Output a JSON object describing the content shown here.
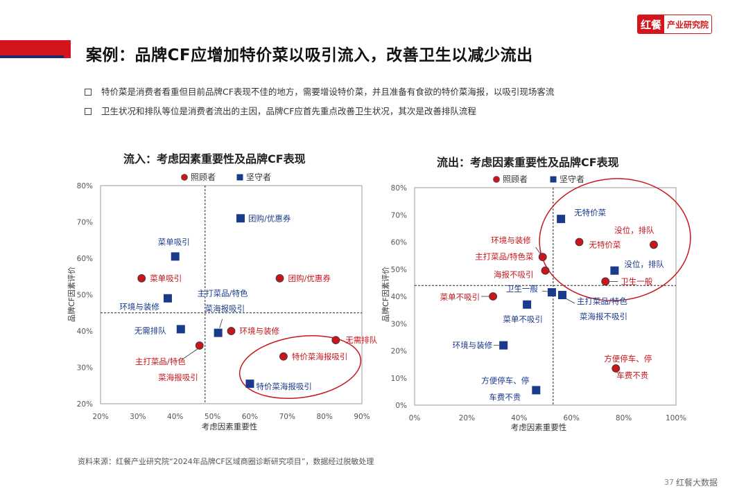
{
  "header": {
    "title": "案例：品牌CF应增加特价菜以吸引流入，改善卫生以减少流出",
    "logo_mark": "红餐",
    "logo_text": "产业研究院"
  },
  "bullets": [
    "特价菜是消费者看重但目前品牌CF表现不佳的地方，需要增设特价菜，并且准备有食欲的特价菜海报，以吸引现场客流",
    "卫生状况和排队等位是消费者流出的主因，品牌CF应首先重点改善卫生状况，其次是改善排队流程"
  ],
  "footer": {
    "source": "资料来源：红餐产业研究院“2024年品牌CF区域商圈诊断研究项目”，数据经过脱敏处理",
    "page": "37",
    "watermark": "红餐大数据"
  },
  "colors": {
    "red": "#c8161d",
    "navy": "#1a3a8c",
    "title_red": "#d3161d",
    "title_navy": "#1f2a6d"
  },
  "chart_data": [
    {
      "type": "scatter",
      "title": "流入：考虑因素重要性及品牌CF表现",
      "xlabel": "考虑因素重要性",
      "ylabel": "品牌CF因素评价",
      "xlim": [
        0.2,
        0.9
      ],
      "ylim": [
        0.2,
        0.8
      ],
      "xticks": [
        "20%",
        "30%",
        "40%",
        "50%",
        "60%",
        "70%",
        "80%",
        "90%"
      ],
      "yticks": [
        "20%",
        "30%",
        "40%",
        "50%",
        "60%",
        "70%",
        "80%"
      ],
      "xref": 0.48,
      "yref": 0.45,
      "legend": [
        "照顾者",
        "坚守者"
      ],
      "series": [
        {
          "name": "照顾者",
          "marker": "circle",
          "points": [
            {
              "label": "菜单吸引",
              "x": 0.31,
              "y": 0.545
            },
            {
              "label": "团购/优惠券",
              "x": 0.68,
              "y": 0.545
            },
            {
              "label": "环境与装修",
              "x": 0.55,
              "y": 0.4
            },
            {
              "label": "主打菜品/特色菜海报吸引",
              "x": 0.465,
              "y": 0.36
            },
            {
              "label": "特价菜海报吸引",
              "x": 0.69,
              "y": 0.33
            },
            {
              "label": "无需排队",
              "x": 0.83,
              "y": 0.375
            }
          ]
        },
        {
          "name": "坚守者",
          "marker": "square",
          "points": [
            {
              "label": "团购/优惠券",
              "x": 0.575,
              "y": 0.71
            },
            {
              "label": "菜单吸引",
              "x": 0.4,
              "y": 0.605
            },
            {
              "label": "环境与装修",
              "x": 0.38,
              "y": 0.49
            },
            {
              "label": "主打菜品/特色菜海报吸引",
              "x": 0.515,
              "y": 0.395
            },
            {
              "label": "无需排队",
              "x": 0.415,
              "y": 0.405
            },
            {
              "label": "特价菜海报吸引",
              "x": 0.6,
              "y": 0.255
            }
          ]
        }
      ]
    },
    {
      "type": "scatter",
      "title": "流出：考虑因素重要性及品牌CF表现",
      "xlabel": "考虑因素重要性",
      "ylabel": "品牌CF因素评价",
      "xlim": [
        0.0,
        1.0
      ],
      "ylim": [
        0.0,
        0.8
      ],
      "xticks": [
        "0%",
        "20%",
        "40%",
        "60%",
        "80%",
        "100%"
      ],
      "yticks": [
        "0%",
        "10%",
        "20%",
        "30%",
        "40%",
        "50%",
        "60%",
        "70%",
        "80%"
      ],
      "xref": 0.53,
      "yref": 0.44,
      "legend": [
        "照顾者",
        "坚守者"
      ],
      "series": [
        {
          "name": "照顾者",
          "marker": "circle",
          "points": [
            {
              "label": "无特价菜",
              "x": 0.63,
              "y": 0.6
            },
            {
              "label": "没位，排队",
              "x": 0.915,
              "y": 0.59
            },
            {
              "label": "环境与装修",
              "x": 0.49,
              "y": 0.545
            },
            {
              "label": "主打菜品/特色菜海报不吸引",
              "x": 0.5,
              "y": 0.495
            },
            {
              "label": "卫生一般",
              "x": 0.73,
              "y": 0.455
            },
            {
              "label": "菜单不吸引",
              "x": 0.3,
              "y": 0.4
            },
            {
              "label": "方便停车、停车费不贵",
              "x": 0.77,
              "y": 0.135
            }
          ]
        },
        {
          "name": "坚守者",
          "marker": "square",
          "points": [
            {
              "label": "无特价菜",
              "x": 0.56,
              "y": 0.685
            },
            {
              "label": "没位，排队",
              "x": 0.765,
              "y": 0.495
            },
            {
              "label": "卫生一般",
              "x": 0.525,
              "y": 0.415
            },
            {
              "label": "主打菜品/特色菜海报不吸引",
              "x": 0.565,
              "y": 0.405
            },
            {
              "label": "菜单不吸引",
              "x": 0.43,
              "y": 0.37
            },
            {
              "label": "环境与装修",
              "x": 0.34,
              "y": 0.22
            },
            {
              "label": "方便停车、停车费不贵",
              "x": 0.465,
              "y": 0.055
            }
          ]
        }
      ]
    }
  ]
}
